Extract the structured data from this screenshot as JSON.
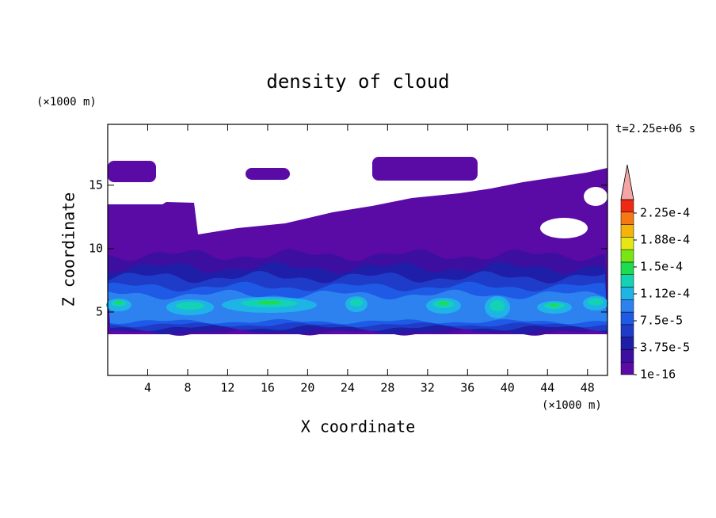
{
  "chart_data": {
    "type": "contour",
    "title": "density of cloud",
    "time_label": "t=2.25e+06 s",
    "xlabel": "X coordinate",
    "ylabel": "Z coordinate",
    "x_unit": "(×1000 m)",
    "y_unit": "(×1000 m)",
    "xlim": [
      0,
      50
    ],
    "ylim": [
      0,
      19.8
    ],
    "xticks": [
      4,
      8,
      12,
      16,
      20,
      24,
      28,
      32,
      36,
      40,
      44,
      48
    ],
    "yticks": [
      5,
      10,
      15
    ],
    "colorbar": {
      "clim": [
        0,
        0.00024375
      ],
      "ticks": [
        {
          "value": 1e-16,
          "label": "1e-16"
        },
        {
          "value": 3.75e-05,
          "label": "3.75e-5"
        },
        {
          "value": 7.5e-05,
          "label": "7.5e-5"
        },
        {
          "value": 0.0001125,
          "label": "1.12e-4"
        },
        {
          "value": 0.00015,
          "label": "1.5e-4"
        },
        {
          "value": 0.0001875,
          "label": "1.88e-4"
        },
        {
          "value": 0.000225,
          "label": "2.25e-4"
        }
      ],
      "colors": [
        "#5a0aa5",
        "#3c0fa0",
        "#1e1ea8",
        "#1e3cc8",
        "#1e5ae6",
        "#2d82f0",
        "#1eb4e6",
        "#14d2b4",
        "#1edc50",
        "#78e614",
        "#e6e614",
        "#f5b40a",
        "#f57814",
        "#f02814"
      ],
      "extend_color": "#f4a6a6"
    }
  }
}
